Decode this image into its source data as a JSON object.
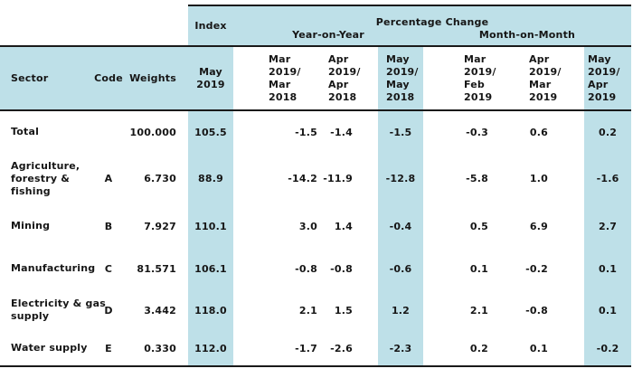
{
  "colors": {
    "highlight": "#BEE0E8",
    "border": "#1a1a1a",
    "text": "#161616"
  },
  "table": {
    "top_header": {
      "index": "Index",
      "percentage_change": "Percentage Change",
      "year_on_year": "Year-on-Year",
      "month_on_month": "Month-on-Month"
    },
    "columns": {
      "sector": "Sector",
      "code": "Code",
      "weights": "Weights",
      "index_period": [
        "May",
        "2019"
      ],
      "yoy_mar": [
        "Mar",
        "2019/",
        "Mar",
        "2018"
      ],
      "yoy_apr": [
        "Apr",
        "2019/",
        "Apr",
        "2018"
      ],
      "yoy_may": [
        "May",
        "2019/",
        "May",
        "2018"
      ],
      "mom_mar": [
        "Mar",
        "2019/",
        "Feb",
        "2019"
      ],
      "mom_apr": [
        "Apr",
        "2019/",
        "Mar",
        "2019"
      ],
      "mom_may": [
        "May",
        "2019/",
        "Apr",
        "2019"
      ]
    },
    "rows": [
      {
        "sector": [
          "Total"
        ],
        "code": "",
        "weights": "100.000",
        "index": "105.5",
        "yoy_mar": "-1.5",
        "yoy_apr": "-1.4",
        "yoy_may": "-1.5",
        "mom_mar": "-0.3",
        "mom_apr": "0.6",
        "mom_may": "0.2"
      },
      {
        "sector": [
          "Agriculture,",
          "forestry &",
          "fishing"
        ],
        "code": "A",
        "weights": "6.730",
        "index": "88.9",
        "yoy_mar": "-14.2",
        "yoy_apr": "-11.9",
        "yoy_may": "-12.8",
        "mom_mar": "-5.8",
        "mom_apr": "1.0",
        "mom_may": "-1.6"
      },
      {
        "sector": [
          "Mining"
        ],
        "code": "B",
        "weights": "7.927",
        "index": "110.1",
        "yoy_mar": "3.0",
        "yoy_apr": "1.4",
        "yoy_may": "-0.4",
        "mom_mar": "0.5",
        "mom_apr": "6.9",
        "mom_may": "2.7"
      },
      {
        "sector": [
          "Manufacturing"
        ],
        "code": "C",
        "weights": "81.571",
        "index": "106.1",
        "yoy_mar": "-0.8",
        "yoy_apr": "-0.8",
        "yoy_may": "-0.6",
        "mom_mar": "0.1",
        "mom_apr": "-0.2",
        "mom_may": "0.1"
      },
      {
        "sector": [
          "Electricity & gas",
          "supply"
        ],
        "code": "D",
        "weights": "3.442",
        "index": "118.0",
        "yoy_mar": "2.1",
        "yoy_apr": "1.5",
        "yoy_may": "1.2",
        "mom_mar": "2.1",
        "mom_apr": "-0.8",
        "mom_may": "0.1"
      },
      {
        "sector": [
          "Water supply"
        ],
        "code": "E",
        "weights": "0.330",
        "index": "112.0",
        "yoy_mar": "-1.7",
        "yoy_apr": "-2.6",
        "yoy_may": "-2.3",
        "mom_mar": "0.2",
        "mom_apr": "0.1",
        "mom_may": "-0.2"
      }
    ]
  },
  "chart_data": {
    "type": "table",
    "title": "",
    "column_groups": [
      "Index",
      "Percentage Change: Year-on-Year",
      "Percentage Change: Month-on-Month"
    ],
    "columns": [
      "Sector",
      "Code",
      "Weights",
      "Index May 2019",
      "Mar 2019/Mar 2018",
      "Apr 2019/Apr 2018",
      "May 2019/May 2018",
      "Mar 2019/Feb 2019",
      "Apr 2019/Mar 2019",
      "May 2019/Apr 2019"
    ],
    "rows": [
      [
        "Total",
        "",
        100.0,
        105.5,
        -1.5,
        -1.4,
        -1.5,
        -0.3,
        0.6,
        0.2
      ],
      [
        "Agriculture, forestry & fishing",
        "A",
        6.73,
        88.9,
        -14.2,
        -11.9,
        -12.8,
        -5.8,
        1.0,
        -1.6
      ],
      [
        "Mining",
        "B",
        7.927,
        110.1,
        3.0,
        1.4,
        -0.4,
        0.5,
        6.9,
        2.7
      ],
      [
        "Manufacturing",
        "C",
        81.571,
        106.1,
        -0.8,
        -0.8,
        -0.6,
        0.1,
        -0.2,
        0.1
      ],
      [
        "Electricity & gas supply",
        "D",
        3.442,
        118.0,
        2.1,
        1.5,
        1.2,
        2.1,
        -0.8,
        0.1
      ],
      [
        "Water supply",
        "E",
        0.33,
        112.0,
        -1.7,
        -2.6,
        -2.3,
        0.2,
        0.1,
        -0.2
      ]
    ]
  }
}
